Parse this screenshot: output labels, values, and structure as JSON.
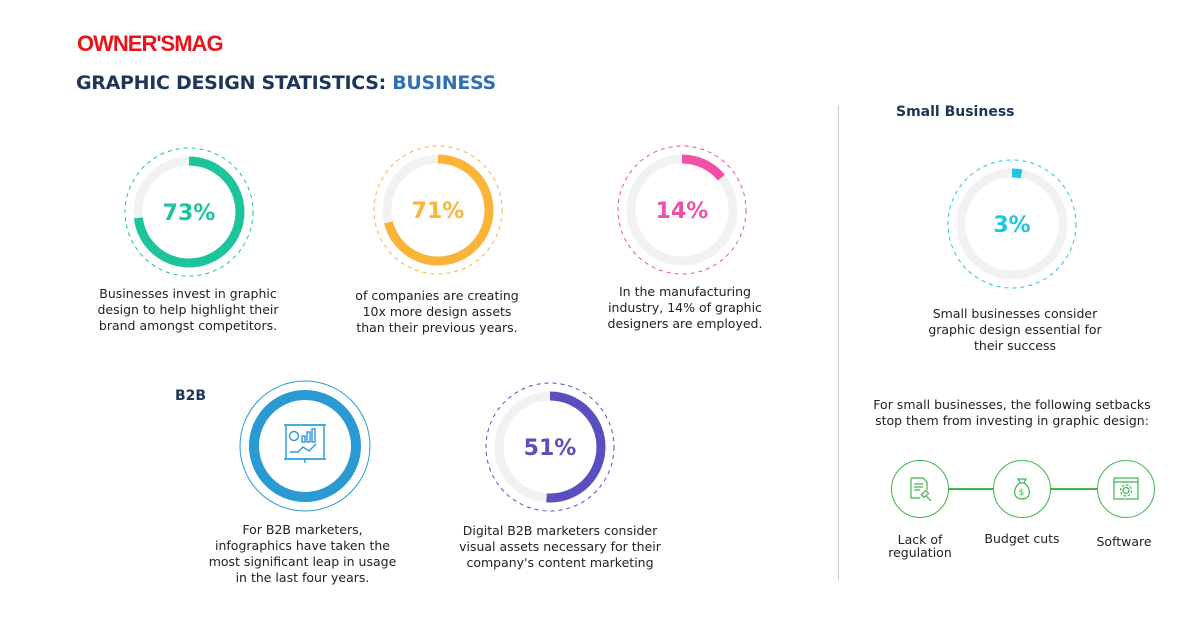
{
  "brand": {
    "logo_text": "OWNER'SMAG",
    "color": "#e8141b"
  },
  "header": {
    "title_main": "GRAPHIC DESIGN STATISTICS:",
    "title_accent": "BUSINESS"
  },
  "sections": {
    "b2b": "B2B",
    "small_business": "Small Business"
  },
  "chart_data": [
    {
      "type": "pie",
      "variant": "donut-progress",
      "value": 73,
      "label": "73%",
      "color": "#1dc39b",
      "caption": "Businesses invest in graphic design to help highlight their brand amongst competitors."
    },
    {
      "type": "pie",
      "variant": "donut-progress",
      "value": 71,
      "label": "71%",
      "color": "#fbb43a",
      "caption": "of companies are creating 10x more design assets than their previous years."
    },
    {
      "type": "pie",
      "variant": "donut-progress",
      "value": 14,
      "label": "14%",
      "color": "#f24fa6",
      "caption": "In the manufacturing industry, 14% of graphic designers are employed."
    },
    {
      "type": "pie",
      "variant": "donut-progress",
      "value": 51,
      "label": "51%",
      "color": "#5a4fc0",
      "caption": "Digital B2B marketers consider visual assets necessary for their company's  content marketing"
    },
    {
      "type": "pie",
      "variant": "donut-progress",
      "value": 3,
      "label": "3%",
      "color": "#1fc6e0",
      "caption": "Small businesses consider graphic design essential for their success"
    }
  ],
  "b2b_infographic": {
    "icon": "presentation-chart-icon",
    "color": "#2a9ad3",
    "caption": "For B2B marketers, infographics have taken the most significant leap in usage in the last four years."
  },
  "setbacks": {
    "intro": "For small businesses, the following setbacks stop them from investing in graphic design:",
    "color": "#3fb54a",
    "items": [
      {
        "label": "Lack of regulation",
        "icon": "document-gavel-icon"
      },
      {
        "label": "Budget cuts",
        "icon": "money-bag-icon"
      },
      {
        "label": "Software",
        "icon": "software-gear-icon"
      }
    ]
  }
}
